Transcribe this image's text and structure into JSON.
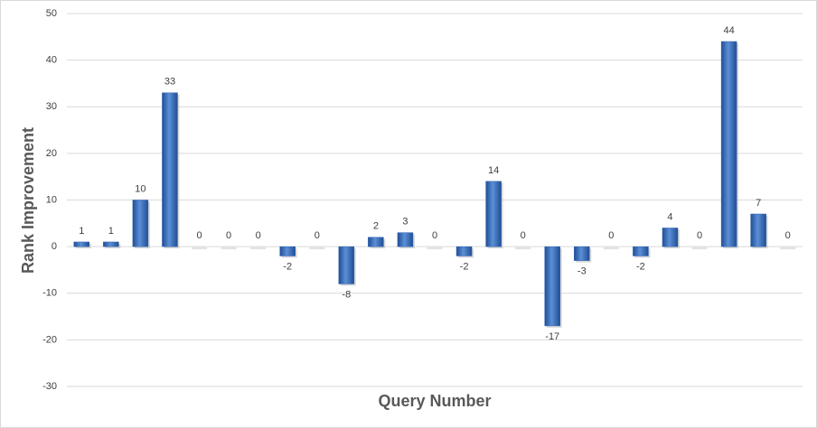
{
  "chart_data": {
    "type": "bar",
    "x_label": "Query Number",
    "y_label": "Rank Improvement",
    "categories": [
      null,
      null,
      null,
      null,
      null,
      null,
      null,
      null,
      null,
      null,
      null,
      null,
      null,
      null,
      null,
      null,
      null,
      null,
      null,
      null,
      null,
      null,
      null,
      null,
      null
    ],
    "values": [
      1,
      1,
      10,
      33,
      0,
      0,
      0,
      -2,
      0,
      -8,
      2,
      3,
      0,
      -2,
      14,
      0,
      -17,
      -3,
      0,
      -2,
      4,
      0,
      44,
      7,
      0
    ],
    "color": "#2e62ad",
    "ylim": [
      -30,
      50
    ],
    "yticks": [
      -30,
      -20,
      -10,
      0,
      10,
      20,
      30,
      40,
      50
    ],
    "grid": true
  }
}
